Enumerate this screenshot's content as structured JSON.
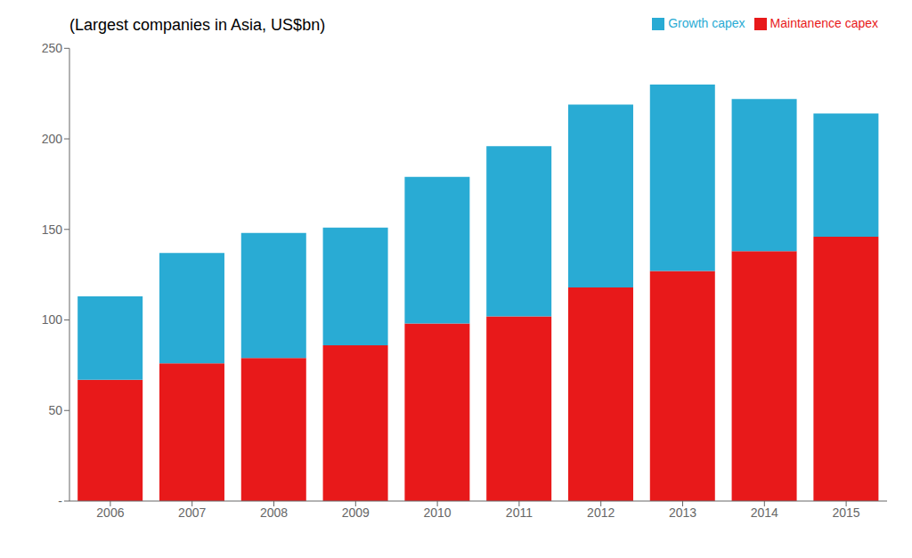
{
  "chart_data": {
    "type": "bar",
    "subtitle": "(Largest companies in Asia, US$bn)",
    "stacked": true,
    "categories": [
      "2006",
      "2007",
      "2008",
      "2009",
      "2010",
      "2011",
      "2012",
      "2013",
      "2014",
      "2015"
    ],
    "series": [
      {
        "name": "Maintanence capex",
        "color": "#E8191A",
        "values": [
          67,
          76,
          79,
          86,
          98,
          102,
          118,
          127,
          138,
          146
        ]
      },
      {
        "name": "Growth capex",
        "color": "#29ABD4",
        "values": [
          46,
          61,
          69,
          65,
          81,
          94,
          101,
          103,
          84,
          68
        ]
      }
    ],
    "ylim": [
      0,
      250
    ],
    "yticks": [
      {
        "value": 0,
        "label": "-"
      },
      50,
      100,
      150,
      200,
      250
    ],
    "grid": false,
    "legend": "upper right"
  }
}
